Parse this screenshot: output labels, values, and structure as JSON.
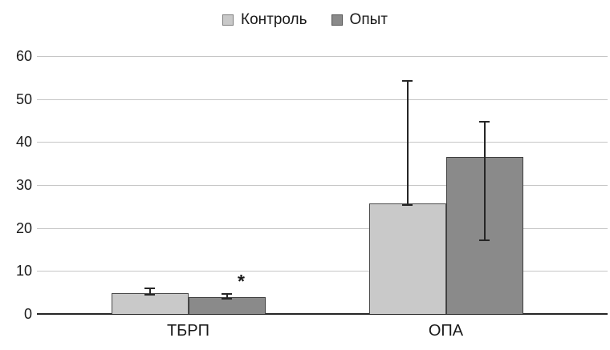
{
  "legend": {
    "items": [
      {
        "label": "Контроль",
        "series_key": "control"
      },
      {
        "label": "Опыт",
        "series_key": "experiment"
      }
    ]
  },
  "colors": {
    "control_fill": "#c9c9c9",
    "control_border": "#4a4a4a",
    "control_legend_border": "#7f7f7f",
    "experiment_fill": "#8a8a8a",
    "experiment_border": "#3f3f3f",
    "experiment_legend_border": "#555555",
    "gridline": "#c6c6c6",
    "axis_line": "#262626",
    "error_bar": "#262626",
    "text": "#1a1a1a"
  },
  "chart_data": {
    "type": "bar",
    "categories": [
      "ТБРП",
      "ОПА"
    ],
    "series": [
      {
        "name": "Контроль",
        "values": [
          4.9,
          25.8
        ],
        "error_top": [
          5.9,
          54.3
        ],
        "error_bottom": [
          4.4,
          25.4
        ]
      },
      {
        "name": "Опыт",
        "values": [
          4.0,
          36.5
        ],
        "error_top": [
          4.6,
          44.7
        ],
        "error_bottom": [
          3.5,
          17.2
        ]
      }
    ],
    "annotations": [
      {
        "text": "*",
        "category_index": 0,
        "series_index": 1
      }
    ],
    "title": "",
    "xlabel": "",
    "ylabel": "",
    "ylim": [
      0,
      60
    ],
    "yticks": [
      0,
      10,
      20,
      30,
      40,
      50,
      60
    ],
    "grid": true,
    "legend_position": "top"
  }
}
